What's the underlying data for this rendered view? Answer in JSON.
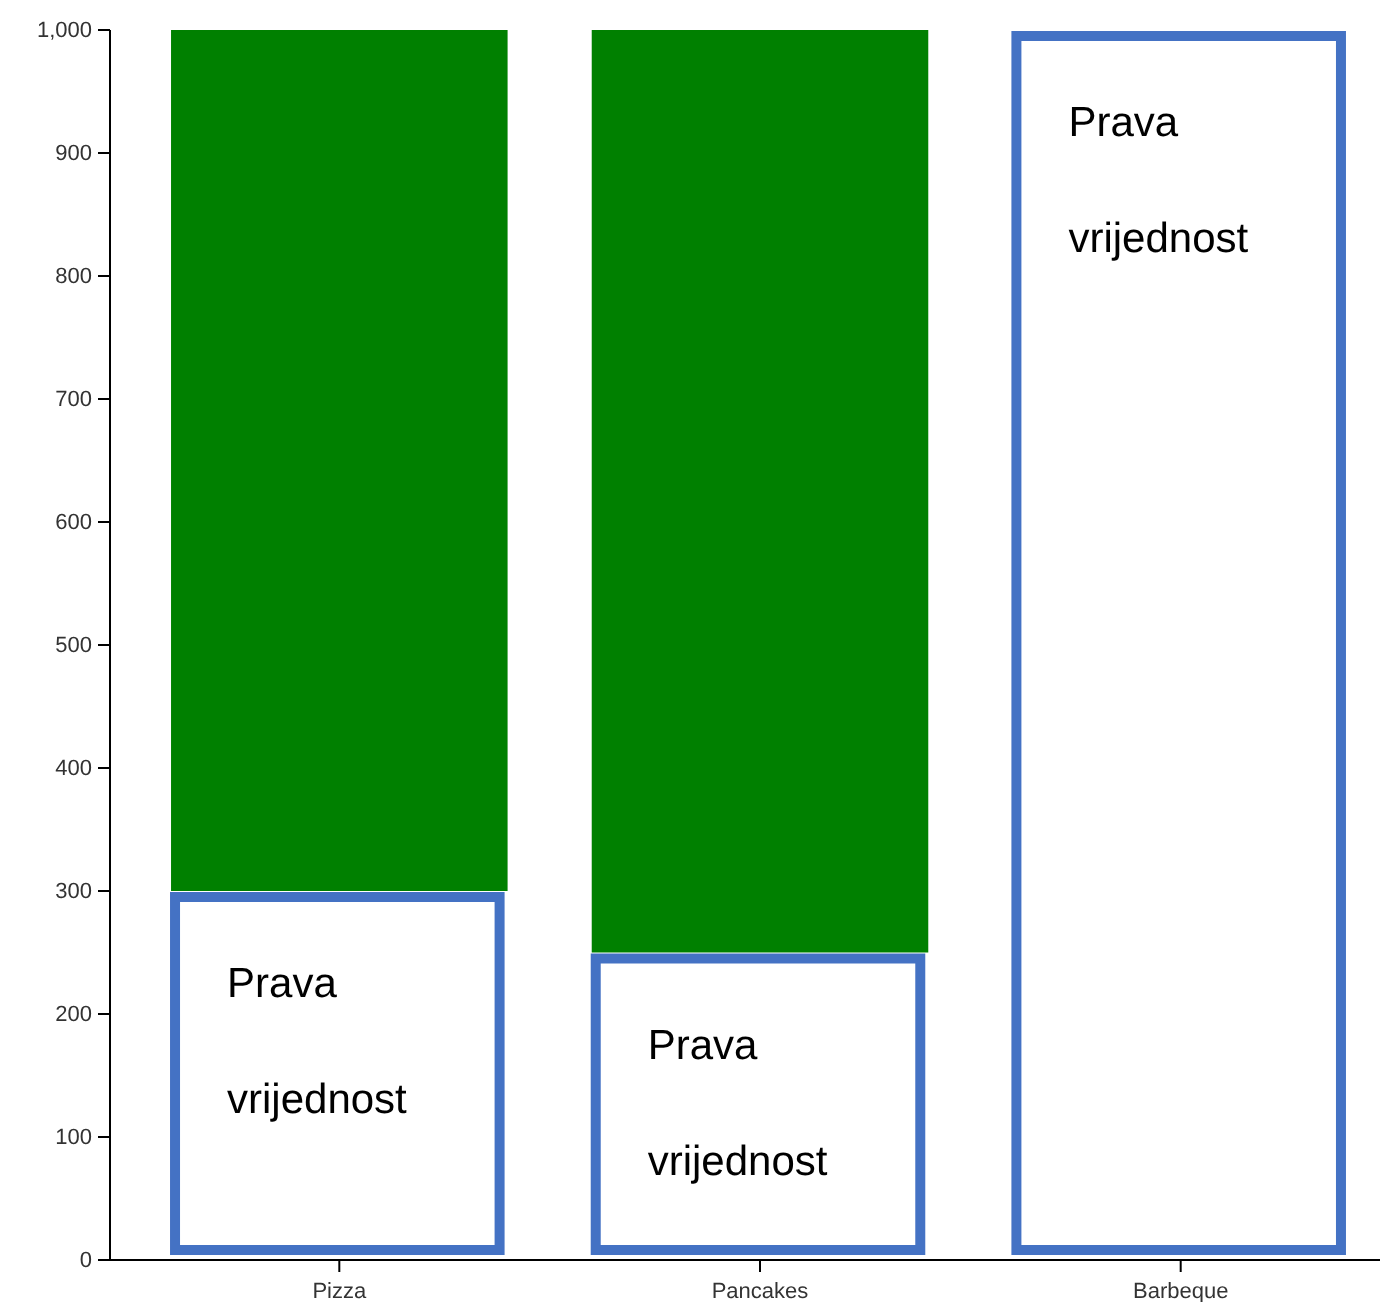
{
  "chart_data": {
    "type": "bar",
    "categories": [
      "Pizza",
      "Pancakes",
      "Barbeque"
    ],
    "values": [
      700,
      750,
      null
    ],
    "base": [
      300,
      250,
      null
    ],
    "color": "#008000",
    "ylim": [
      0,
      1000
    ],
    "yticks": [
      0,
      100,
      200,
      300,
      400,
      500,
      600,
      700,
      800,
      900,
      {
        "value": 1000,
        "label": "1,000"
      }
    ],
    "annotations": [
      "Prava vrijednost",
      "Prava vrijednost",
      "Prava vrijednost"
    ]
  }
}
